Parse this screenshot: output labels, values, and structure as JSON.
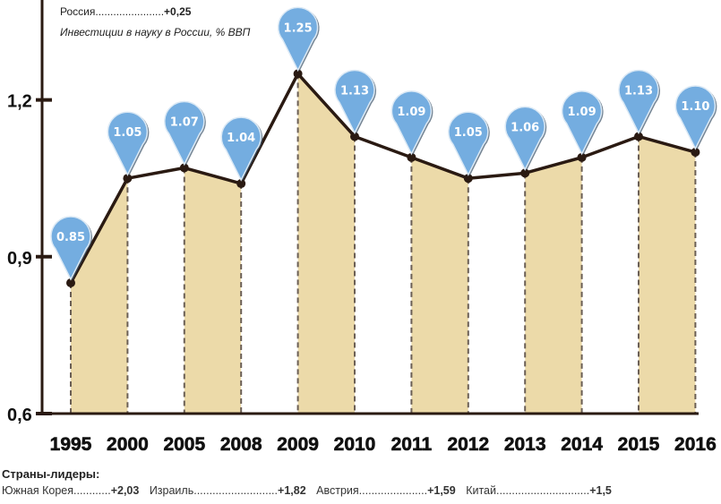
{
  "header": {
    "russia_label": "Россия",
    "russia_value": "+0,25",
    "subtitle": "Инвестиции в науку в России, % ВВП"
  },
  "leaders": {
    "title": "Страны-лидеры:",
    "items": [
      {
        "name": "Южная Корея",
        "dots": "............",
        "value": "+2,03"
      },
      {
        "name": "Израиль",
        "dots": "...........................",
        "value": "+1,82"
      },
      {
        "name": "Австрия",
        "dots": "......................",
        "value": "+1,59"
      },
      {
        "name": "Китай",
        "dots": "..............................",
        "value": "+1,5"
      }
    ]
  },
  "chart_data": {
    "type": "area",
    "title": "Инвестиции в науку в России, % ВВП",
    "categories": [
      "1995",
      "2000",
      "2005",
      "2008",
      "2009",
      "2010",
      "2011",
      "2012",
      "2013",
      "2014",
      "2015",
      "2016"
    ],
    "values": [
      0.85,
      1.05,
      1.07,
      1.04,
      1.25,
      1.13,
      1.09,
      1.05,
      1.06,
      1.09,
      1.13,
      1.1
    ],
    "data_labels": [
      "0.85",
      "1.05",
      "1.07",
      "1.04",
      "1.25",
      "1.13",
      "1.09",
      "1.05",
      "1.06",
      "1.09",
      "1.13",
      "1.10"
    ],
    "yticks": [
      0.6,
      0.9,
      1.2
    ],
    "ytick_labels": [
      "0,6",
      "0,9",
      "1,2"
    ],
    "ylim": [
      0.6,
      1.4
    ],
    "grid": false,
    "colors": {
      "line": "#2a1a12",
      "fill": "#ecdaa9",
      "pin": "#74ade0",
      "pin_text": "#ffffff"
    }
  }
}
